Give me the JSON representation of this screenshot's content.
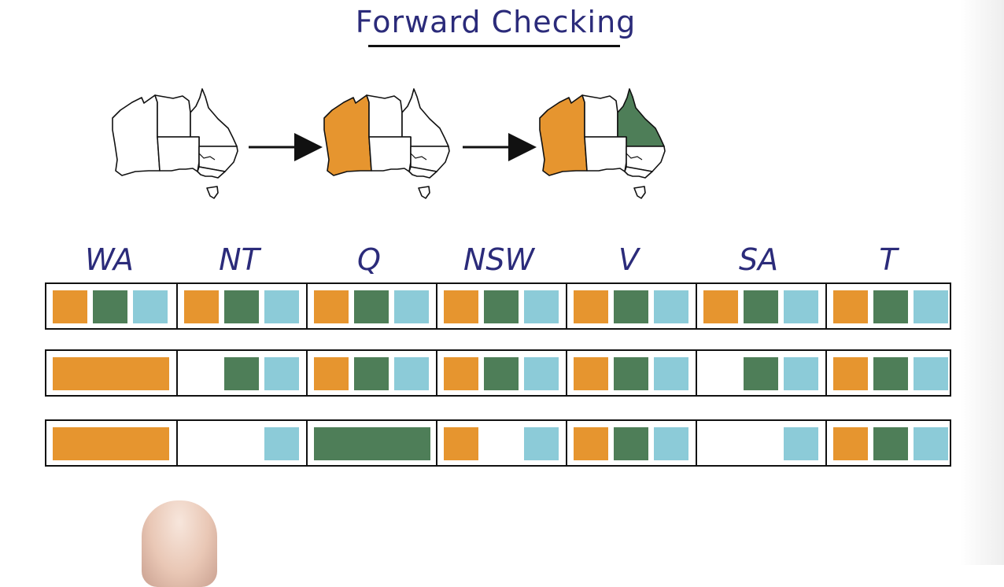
{
  "title": "Forward Checking",
  "colors": {
    "orange": "#e6952f",
    "green": "#4e7e58",
    "blue": "#8ccbd8",
    "ink": "#2b2b7a"
  },
  "maps": [
    {
      "colored": {}
    },
    {
      "colored": {
        "WA": "orange"
      }
    },
    {
      "colored": {
        "WA": "orange",
        "Q": "green"
      }
    }
  ],
  "variables": [
    "WA",
    "NT",
    "Q",
    "NSW",
    "V",
    "SA",
    "T"
  ],
  "rows": [
    [
      [
        "orange",
        "green",
        "blue"
      ],
      [
        "orange",
        "green",
        "blue"
      ],
      [
        "orange",
        "green",
        "blue"
      ],
      [
        "orange",
        "green",
        "blue"
      ],
      [
        "orange",
        "green",
        "blue"
      ],
      [
        "orange",
        "green",
        "blue"
      ],
      [
        "orange",
        "green",
        "blue"
      ]
    ],
    [
      [
        "orange*"
      ],
      [
        "",
        "green",
        "blue"
      ],
      [
        "orange",
        "green",
        "blue"
      ],
      [
        "orange",
        "green",
        "blue"
      ],
      [
        "orange",
        "green",
        "blue"
      ],
      [
        "",
        "green",
        "blue"
      ],
      [
        "orange",
        "green",
        "blue"
      ]
    ],
    [
      [
        "orange*"
      ],
      [
        "",
        "",
        "blue"
      ],
      [
        "green*"
      ],
      [
        "orange",
        "",
        "blue"
      ],
      [
        "orange",
        "green",
        "blue"
      ],
      [
        "",
        "",
        "blue"
      ],
      [
        "orange",
        "green",
        "blue"
      ]
    ]
  ]
}
